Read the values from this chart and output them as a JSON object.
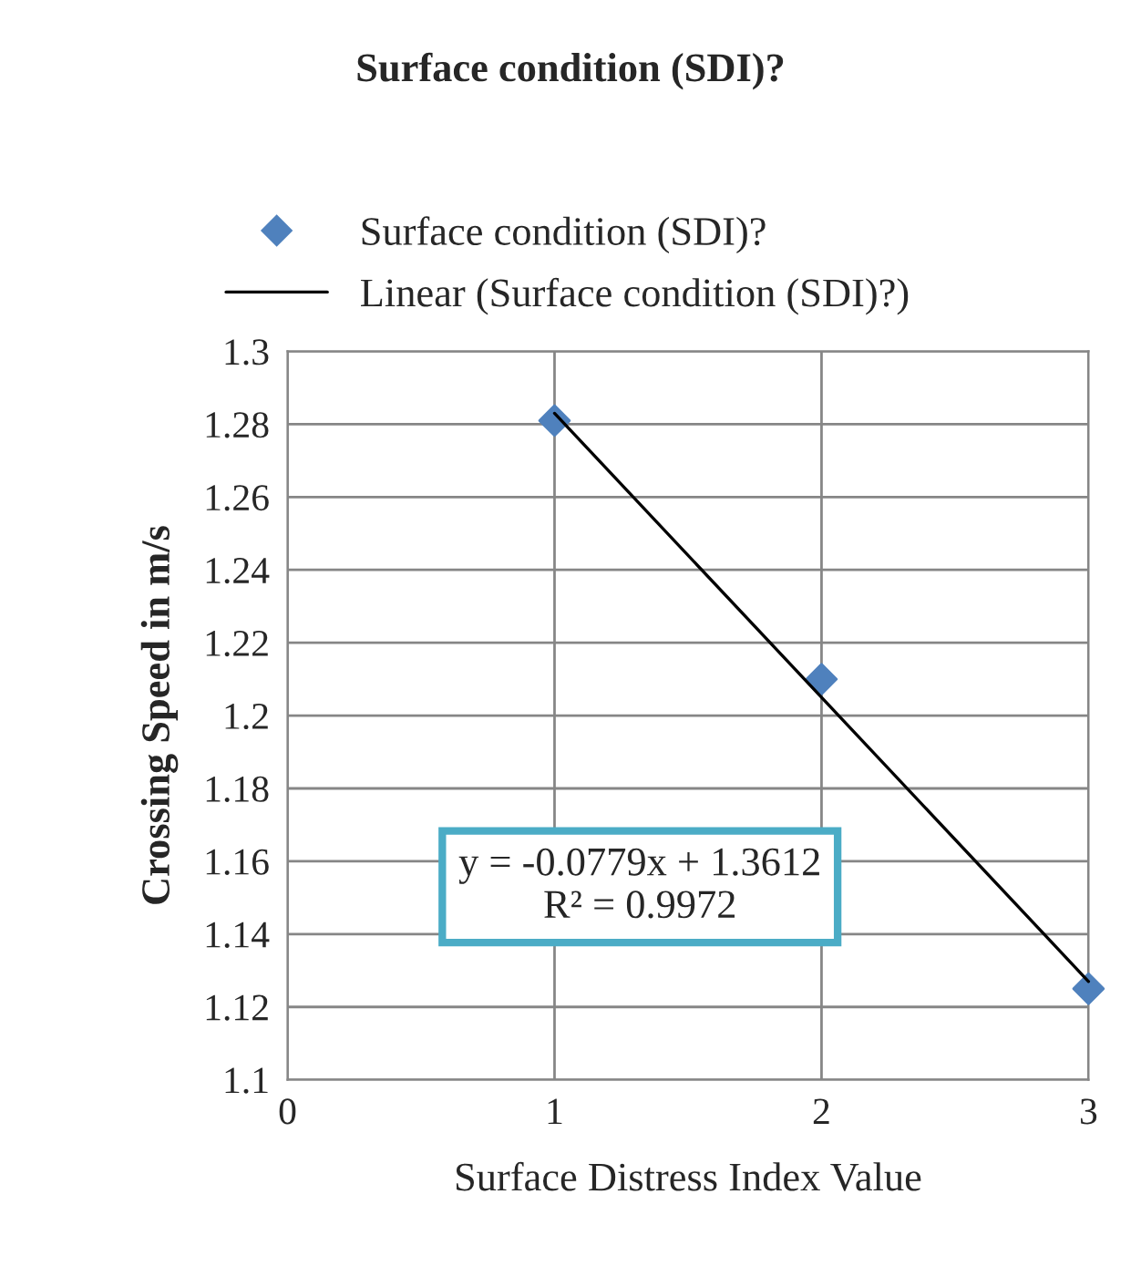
{
  "chart_data": {
    "type": "scatter",
    "title": "Surface condition (SDI)?",
    "xlabel": "Surface Distress Index Value",
    "ylabel": "Crossing Speed in m/s",
    "series": [
      {
        "name": "Surface condition (SDI)?",
        "color": "#4f81bd",
        "marker": "diamond",
        "x": [
          1,
          2,
          3
        ],
        "values": [
          1.281,
          1.21,
          1.125
        ]
      },
      {
        "name": "Linear (Surface condition (SDI)?)",
        "type": "line",
        "color": "#000000",
        "marker": "none",
        "line_style": "solid",
        "x": [
          1,
          3
        ],
        "values": [
          1.283,
          1.127
        ]
      }
    ],
    "xlim": [
      0,
      3
    ],
    "xticks": [
      0,
      1,
      2,
      3
    ],
    "ylim": [
      1.1,
      1.3
    ],
    "yticks": [
      {
        "value": 1.1,
        "label": "1.1"
      },
      {
        "value": 1.12,
        "label": "1.12"
      },
      {
        "value": 1.14,
        "label": "1.14"
      },
      {
        "value": 1.16,
        "label": "1.16"
      },
      {
        "value": 1.18,
        "label": "1.18"
      },
      {
        "value": 1.2,
        "label": "1.2"
      },
      {
        "value": 1.22,
        "label": "1.22"
      },
      {
        "value": 1.24,
        "label": "1.24"
      },
      {
        "value": 1.26,
        "label": "1.26"
      },
      {
        "value": 1.28,
        "label": "1.28"
      },
      {
        "value": 1.3,
        "label": "1.3"
      }
    ],
    "grid": true,
    "legend": "top",
    "annotations": [
      "y = -0.0779x + 1.3612\nR² = 0.9972"
    ]
  }
}
